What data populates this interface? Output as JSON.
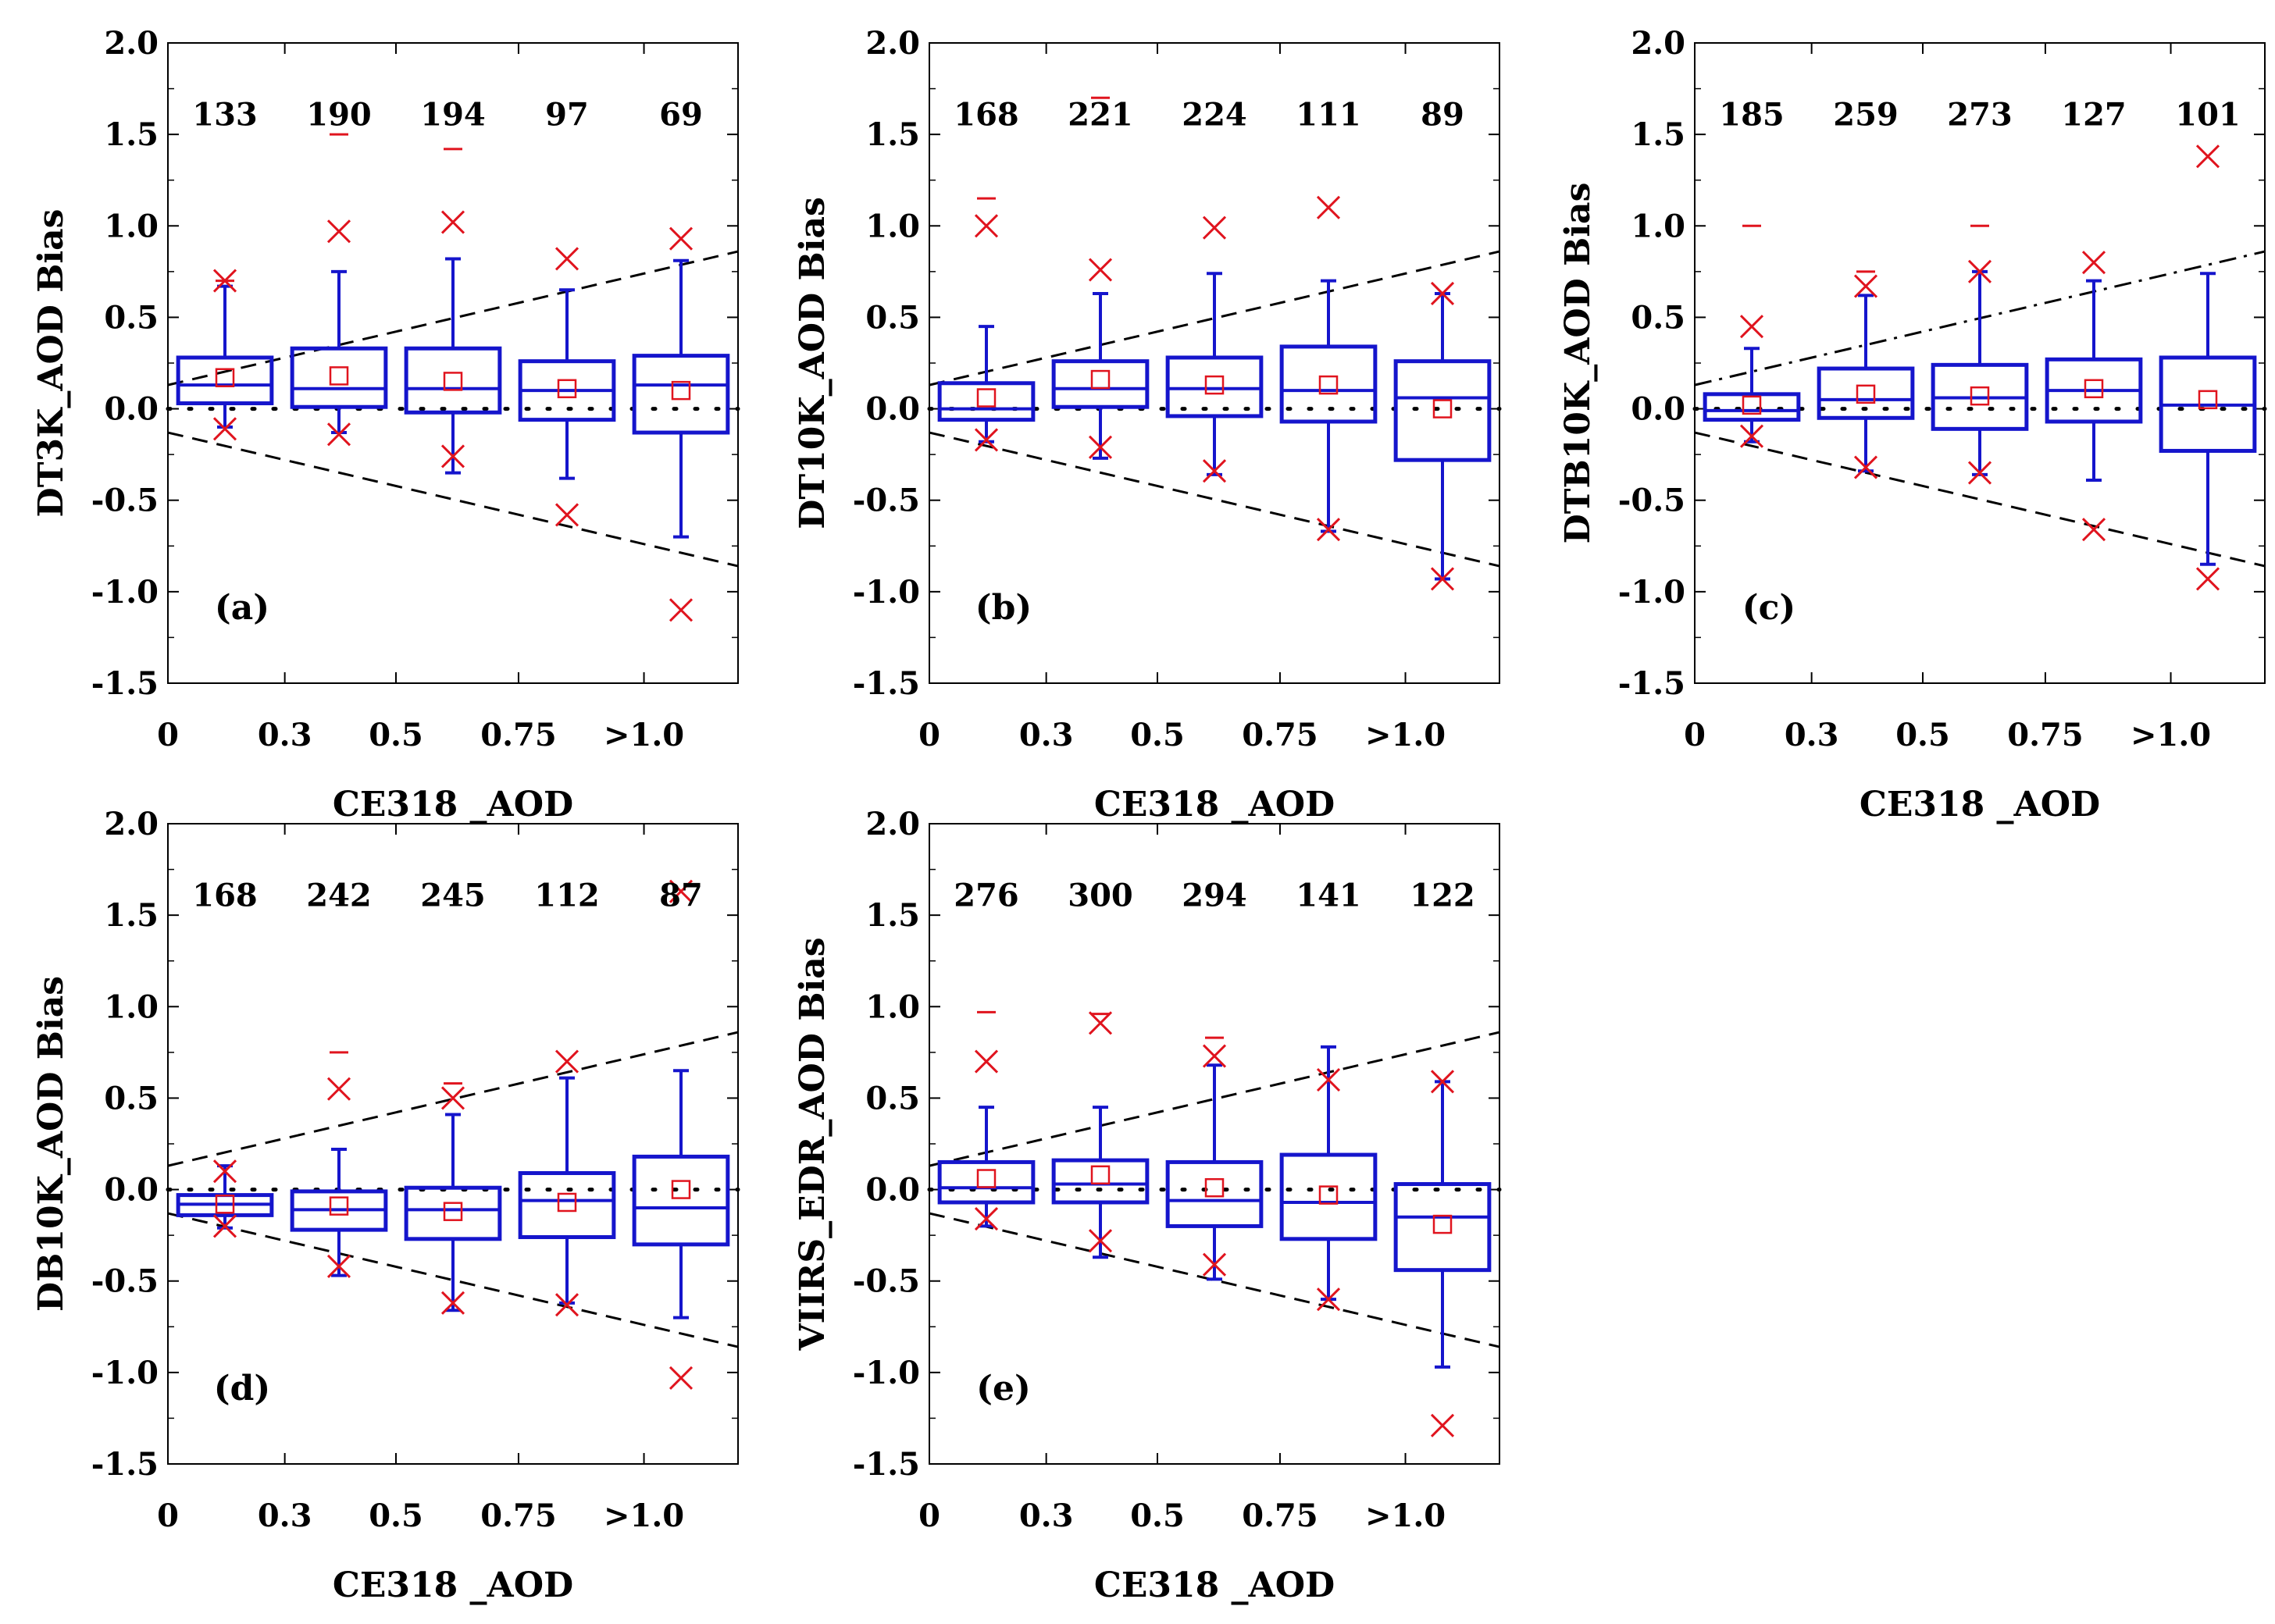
{
  "figure": {
    "x_tick_labels": [
      "0",
      "0.3",
      "0.5",
      "0.75",
      ">1.0"
    ],
    "y_tick_labels": [
      "2.0",
      "1.5",
      "1.0",
      "0.5",
      "0.0",
      "-0.5",
      "-1.0",
      "-1.5"
    ],
    "colors": {
      "box": "#1515cc",
      "marker": "#e0141e",
      "axis": "#000000"
    }
  },
  "chart_data": [
    {
      "type": "box",
      "panel_label": "(a)",
      "xlabel": "CE318 _AOD",
      "ylabel": "DT3K_AOD Bias",
      "ylim": [
        -1.5,
        2.0
      ],
      "categories": [
        "0-0.3",
        "0.3-0.5",
        "0.5-0.75",
        "0.75-1.0",
        ">1.0"
      ],
      "counts": [
        "133",
        "190",
        "194",
        "97",
        "69"
      ],
      "boxes": [
        {
          "q1": 0.03,
          "median": 0.13,
          "q3": 0.28,
          "mean": 0.17,
          "whisker_low": -0.1,
          "whisker_high": 0.67,
          "x_low": -0.11,
          "x_high": 0.7,
          "dash_high": 0.7
        },
        {
          "q1": 0.01,
          "median": 0.11,
          "q3": 0.33,
          "mean": 0.18,
          "whisker_low": -0.13,
          "whisker_high": 0.75,
          "x_low": -0.14,
          "x_high": 0.97,
          "dash_high": 1.5
        },
        {
          "q1": -0.02,
          "median": 0.11,
          "q3": 0.33,
          "mean": 0.15,
          "whisker_low": -0.35,
          "whisker_high": 0.82,
          "x_low": -0.26,
          "x_high": 1.02,
          "dash_high": 1.42
        },
        {
          "q1": -0.06,
          "median": 0.1,
          "q3": 0.26,
          "mean": 0.11,
          "whisker_low": -0.38,
          "whisker_high": 0.65,
          "x_low": -0.58,
          "x_high": 0.82,
          "dash_high": null
        },
        {
          "q1": -0.13,
          "median": 0.13,
          "q3": 0.29,
          "mean": 0.1,
          "whisker_low": -0.7,
          "whisker_high": 0.81,
          "x_low": -1.1,
          "x_high": 0.93,
          "dash_high": null
        }
      ]
    },
    {
      "type": "box",
      "panel_label": "(b)",
      "xlabel": "CE318 _AOD",
      "ylabel": "DT10K_AOD Bias",
      "ylim": [
        -1.5,
        2.0
      ],
      "categories": [
        "0-0.3",
        "0.3-0.5",
        "0.5-0.75",
        "0.75-1.0",
        ">1.0"
      ],
      "counts": [
        "168",
        "221",
        "224",
        "111",
        "89"
      ],
      "boxes": [
        {
          "q1": -0.06,
          "median": 0.0,
          "q3": 0.14,
          "mean": 0.06,
          "whisker_low": -0.18,
          "whisker_high": 0.45,
          "x_low": -0.17,
          "x_high": 1.0,
          "dash_high": 1.15
        },
        {
          "q1": 0.01,
          "median": 0.11,
          "q3": 0.26,
          "mean": 0.16,
          "whisker_low": -0.27,
          "whisker_high": 0.63,
          "x_low": -0.21,
          "x_high": 0.76,
          "dash_high": 1.7
        },
        {
          "q1": -0.04,
          "median": 0.11,
          "q3": 0.28,
          "mean": 0.13,
          "whisker_low": -0.36,
          "whisker_high": 0.74,
          "x_low": -0.34,
          "x_high": 0.99,
          "dash_high": null
        },
        {
          "q1": -0.07,
          "median": 0.1,
          "q3": 0.34,
          "mean": 0.13,
          "whisker_low": -0.67,
          "whisker_high": 0.7,
          "x_low": -0.66,
          "x_high": 1.1,
          "dash_high": null
        },
        {
          "q1": -0.28,
          "median": 0.06,
          "q3": 0.26,
          "mean": 0.0,
          "whisker_low": -0.93,
          "whisker_high": 0.63,
          "x_low": -0.93,
          "x_high": 0.63,
          "dash_high": null
        }
      ]
    },
    {
      "type": "box",
      "panel_label": "(c)",
      "xlabel": "CE318 _AOD",
      "ylabel": "DTB10K_AOD Bias",
      "ylim": [
        -1.5,
        2.0
      ],
      "categories": [
        "0-0.3",
        "0.3-0.5",
        "0.5-0.75",
        "0.75-1.0",
        ">1.0"
      ],
      "counts": [
        "185",
        "259",
        "273",
        "127",
        "101"
      ],
      "boxes": [
        {
          "q1": -0.06,
          "median": -0.01,
          "q3": 0.08,
          "mean": 0.02,
          "whisker_low": -0.18,
          "whisker_high": 0.33,
          "x_low": -0.15,
          "x_high": 0.45,
          "dash_high": 1.0
        },
        {
          "q1": -0.05,
          "median": 0.05,
          "q3": 0.22,
          "mean": 0.08,
          "whisker_low": -0.34,
          "whisker_high": 0.62,
          "x_low": -0.32,
          "x_high": 0.67,
          "dash_high": 0.75
        },
        {
          "q1": -0.11,
          "median": 0.06,
          "q3": 0.24,
          "mean": 0.07,
          "whisker_low": -0.36,
          "whisker_high": 0.75,
          "x_low": -0.35,
          "x_high": 0.75,
          "dash_high": 1.0
        },
        {
          "q1": -0.07,
          "median": 0.1,
          "q3": 0.27,
          "mean": 0.11,
          "whisker_low": -0.39,
          "whisker_high": 0.7,
          "x_low": -0.66,
          "x_high": 0.8,
          "dash_high": null
        },
        {
          "q1": -0.23,
          "median": 0.02,
          "q3": 0.28,
          "mean": 0.05,
          "whisker_low": -0.85,
          "whisker_high": 0.74,
          "x_low": -0.93,
          "x_high": 1.38,
          "dash_high": null
        }
      ]
    },
    {
      "type": "box",
      "panel_label": "(d)",
      "xlabel": "CE318 _AOD",
      "ylabel": "DB10K_AOD Bias",
      "ylim": [
        -1.5,
        2.0
      ],
      "categories": [
        "0-0.3",
        "0.3-0.5",
        "0.5-0.75",
        "0.75-1.0",
        ">1.0"
      ],
      "counts": [
        "168",
        "242",
        "245",
        "112",
        "87"
      ],
      "boxes": [
        {
          "q1": -0.14,
          "median": -0.08,
          "q3": -0.03,
          "mean": -0.08,
          "whisker_low": -0.21,
          "whisker_high": 0.13,
          "x_low": -0.2,
          "x_high": 0.1,
          "dash_high": null
        },
        {
          "q1": -0.22,
          "median": -0.11,
          "q3": -0.01,
          "mean": -0.09,
          "whisker_low": -0.47,
          "whisker_high": 0.22,
          "x_low": -0.42,
          "x_high": 0.55,
          "dash_high": 0.75
        },
        {
          "q1": -0.27,
          "median": -0.11,
          "q3": 0.01,
          "mean": -0.12,
          "whisker_low": -0.66,
          "whisker_high": 0.41,
          "x_low": -0.62,
          "x_high": 0.5,
          "dash_high": 0.58
        },
        {
          "q1": -0.26,
          "median": -0.06,
          "q3": 0.09,
          "mean": -0.07,
          "whisker_low": -0.62,
          "whisker_high": 0.61,
          "x_low": -0.63,
          "x_high": 0.7,
          "dash_high": null
        },
        {
          "q1": -0.3,
          "median": -0.1,
          "q3": 0.18,
          "mean": 0.0,
          "whisker_low": -0.7,
          "whisker_high": 0.65,
          "x_low": -1.03,
          "x_high": 1.63,
          "dash_high": null
        }
      ]
    },
    {
      "type": "box",
      "panel_label": "(e)",
      "xlabel": "CE318 _AOD",
      "ylabel": "VIIRS_EDR_AOD Bias",
      "ylim": [
        -1.5,
        2.0
      ],
      "categories": [
        "0-0.3",
        "0.3-0.5",
        "0.5-0.75",
        "0.75-1.0",
        ">1.0"
      ],
      "counts": [
        "276",
        "300",
        "294",
        "141",
        "122"
      ],
      "boxes": [
        {
          "q1": -0.07,
          "median": 0.01,
          "q3": 0.15,
          "mean": 0.06,
          "whisker_low": -0.2,
          "whisker_high": 0.45,
          "x_low": -0.16,
          "x_high": 0.7,
          "dash_high": 0.97
        },
        {
          "q1": -0.07,
          "median": 0.03,
          "q3": 0.16,
          "mean": 0.08,
          "whisker_low": -0.37,
          "whisker_high": 0.45,
          "x_low": -0.28,
          "x_high": 0.91,
          "dash_high": 0.96
        },
        {
          "q1": -0.2,
          "median": -0.06,
          "q3": 0.15,
          "mean": 0.01,
          "whisker_low": -0.49,
          "whisker_high": 0.68,
          "x_low": -0.41,
          "x_high": 0.73,
          "dash_high": 0.83
        },
        {
          "q1": -0.27,
          "median": -0.07,
          "q3": 0.19,
          "mean": -0.03,
          "whisker_low": -0.6,
          "whisker_high": 0.78,
          "x_low": -0.6,
          "x_high": 0.6,
          "dash_high": null
        },
        {
          "q1": -0.44,
          "median": -0.15,
          "q3": 0.03,
          "mean": -0.19,
          "whisker_low": -0.97,
          "whisker_high": 0.59,
          "x_low": -1.29,
          "x_high": 0.59,
          "dash_high": null
        }
      ]
    }
  ]
}
